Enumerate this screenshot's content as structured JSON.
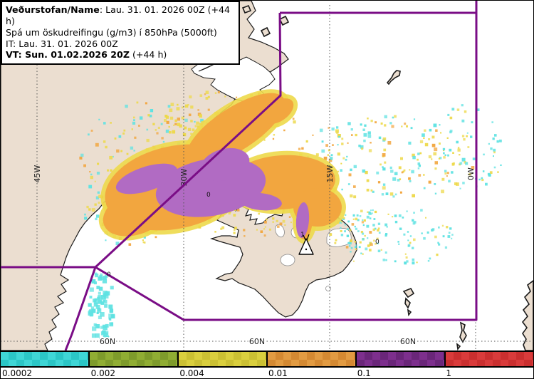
{
  "header": {
    "line1_bold": "Veðurstofan/Name",
    "line1_rest": ": Lau. 31. 01. 2026 00Z (+44 h)",
    "line2": "Spá um öskudreifingu (g/m3) í 850hPa (5000ft)",
    "line3": "IT: Lau. 31. 01. 2026 00Z",
    "line4_bold": "VT: Sun. 01.02.2026 20Z",
    "line4_rest": " (+44 h)"
  },
  "map": {
    "grid": {
      "lon_labels": [
        "45W",
        "30W",
        "15W",
        "0W"
      ],
      "lat_labels": [
        "60N",
        "60N",
        "60N"
      ]
    },
    "contour_labels": [
      {
        "text": "0"
      },
      {
        "text": "1"
      },
      {
        "text": "0"
      },
      {
        "text": "0"
      }
    ],
    "volcano": {
      "symbol": "eruption-triangle"
    },
    "colors": {
      "sea": "#FFFFFF",
      "land": "#EBDED0",
      "coast": "#1A1A1A",
      "boundary": "#7A0D86",
      "ash_trace": "#5FE2E2",
      "ash_low": "#EDD94A",
      "ash_mid": "#F2A63F",
      "ash_high": "#B16BC3"
    }
  },
  "colorbar": {
    "segments": [
      {
        "label": "0.0002",
        "light": "#3FD6D6",
        "dark": "#2BC6C6"
      },
      {
        "label": "0.002",
        "light": "#90AD33",
        "dark": "#7E9B2B"
      },
      {
        "label": "0.004",
        "light": "#DACF3E",
        "dark": "#CBC033"
      },
      {
        "label": "0.01",
        "light": "#E29B42",
        "dark": "#D48932"
      },
      {
        "label": "0.1",
        "light": "#7D2F8D",
        "dark": "#6A2679"
      },
      {
        "label": "1",
        "light": "#D93B3B",
        "dark": "#CA2F2F"
      }
    ]
  }
}
